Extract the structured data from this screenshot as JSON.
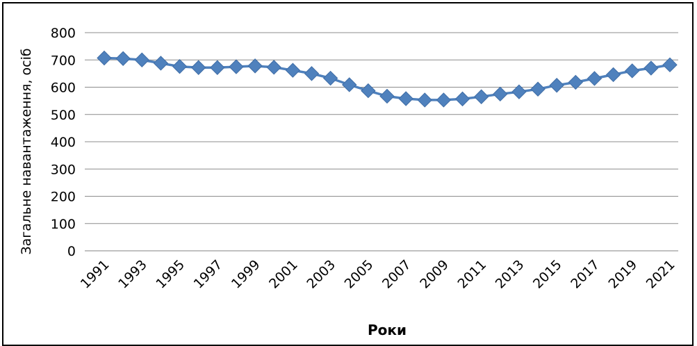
{
  "chart_data": {
    "type": "line",
    "title": "",
    "xlabel": "Роки",
    "ylabel": "Загальне навантаження, осіб",
    "ylim": [
      0,
      800
    ],
    "yticks": [
      0,
      100,
      200,
      300,
      400,
      500,
      600,
      700,
      800
    ],
    "grid": true,
    "legend": "none",
    "x": [
      1991,
      1992,
      1993,
      1994,
      1995,
      1996,
      1997,
      1998,
      1999,
      2000,
      2001,
      2002,
      2003,
      2004,
      2005,
      2006,
      2007,
      2008,
      2009,
      2010,
      2011,
      2012,
      2013,
      2014,
      2015,
      2016,
      2017,
      2018,
      2019,
      2020,
      2021
    ],
    "xtick_labels": [
      "1991",
      "1993",
      "1995",
      "1997",
      "1999",
      "2001",
      "2003",
      "2005",
      "2007",
      "2009",
      "2011",
      "2013",
      "2015",
      "2017",
      "2019",
      "2021"
    ],
    "series": [
      {
        "marker": "diamond",
        "color": "#4F81BD",
        "values": [
          707,
          705,
          700,
          688,
          676,
          672,
          672,
          675,
          678,
          673,
          662,
          650,
          633,
          609,
          587,
          567,
          558,
          553,
          553,
          557,
          565,
          575,
          583,
          593,
          607,
          618,
          632,
          646,
          660,
          670,
          682
        ]
      }
    ]
  }
}
